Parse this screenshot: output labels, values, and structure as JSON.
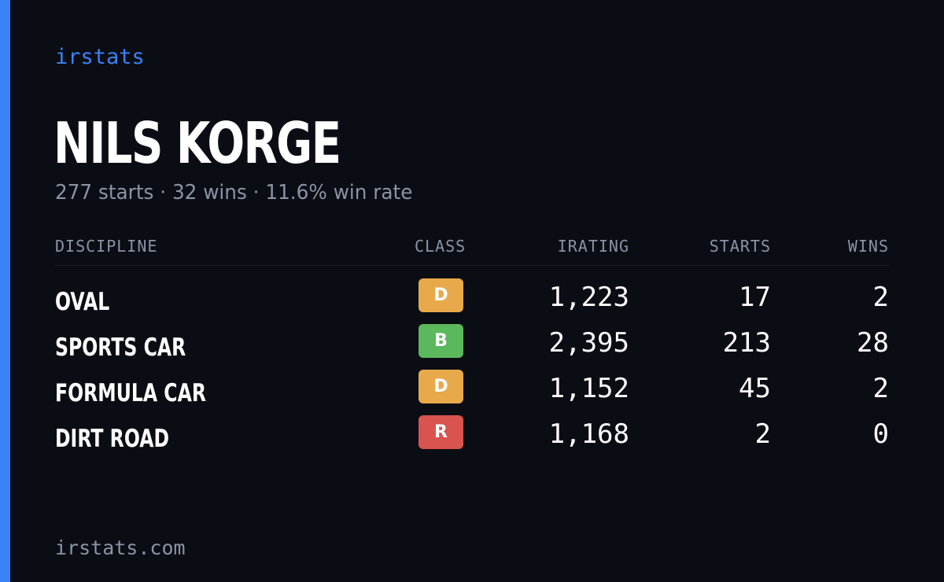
{
  "brand": "irstats",
  "driver": {
    "name": "NILS KORGE",
    "summary": "277 starts · 32 wins · 11.6% win rate"
  },
  "table": {
    "headers": {
      "discipline": "DISCIPLINE",
      "class": "CLASS",
      "irating": "IRATING",
      "starts": "STARTS",
      "wins": "WINS"
    },
    "rows": [
      {
        "discipline": "OVAL",
        "class": "D",
        "class_color": "#e8a94a",
        "irating": "1,223",
        "starts": "17",
        "wins": "2"
      },
      {
        "discipline": "SPORTS CAR",
        "class": "B",
        "class_color": "#5cb85c",
        "irating": "2,395",
        "starts": "213",
        "wins": "28"
      },
      {
        "discipline": "FORMULA CAR",
        "class": "D",
        "class_color": "#e8a94a",
        "irating": "1,152",
        "starts": "45",
        "wins": "2"
      },
      {
        "discipline": "DIRT ROAD",
        "class": "R",
        "class_color": "#d9534f",
        "irating": "1,168",
        "starts": "2",
        "wins": "0"
      }
    ]
  },
  "footer": {
    "url": "irstats.com"
  },
  "colors": {
    "background": "#0a0d14",
    "accent": "#3b82f6",
    "muted_text": "#8b93a6"
  }
}
